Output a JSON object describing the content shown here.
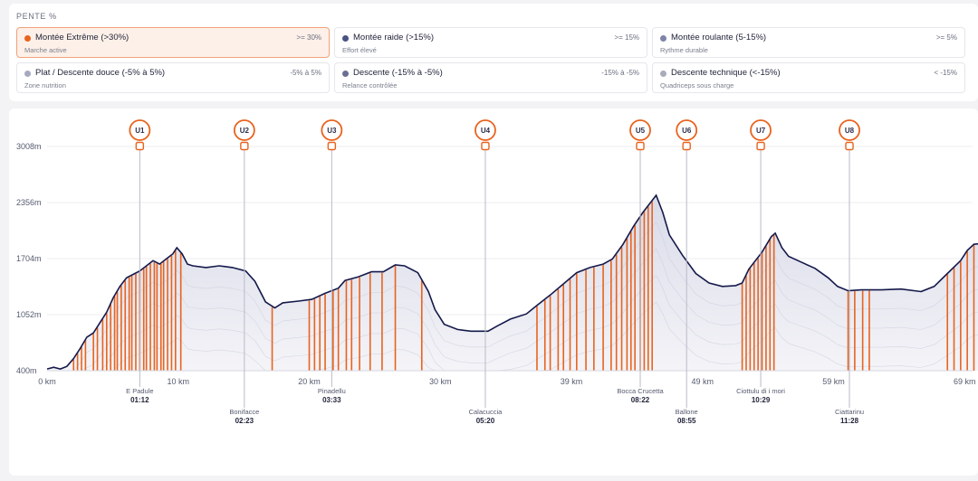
{
  "section_title": "PENTE %",
  "legend": [
    {
      "name": "Montée Extrême (>30%)",
      "range": ">= 30%",
      "desc": "Marche active",
      "color": "#e8631e",
      "active": true
    },
    {
      "name": "Montée raide (>15%)",
      "range": ">= 15%",
      "desc": "Effort élevé",
      "color": "#4a5183",
      "active": false
    },
    {
      "name": "Montée roulante (5-15%)",
      "range": ">= 5%",
      "desc": "Rythme durable",
      "color": "#7e83a8",
      "active": false
    },
    {
      "name": "Plat / Descente douce (-5% à 5%)",
      "range": "-5% à 5%",
      "desc": "Zone nutrition",
      "color": "#a6a9c2",
      "active": false
    },
    {
      "name": "Descente (-15% à -5%)",
      "range": "-15% à -5%",
      "desc": "Relance contrôlée",
      "color": "#6a6e91",
      "active": false
    },
    {
      "name": "Descente technique (<-15%)",
      "range": "< -15%",
      "desc": "Quadriceps sous charge",
      "color": "#a9abbb",
      "active": false
    }
  ],
  "colors": {
    "profile_line": "#15194a",
    "steep": "#e8631e",
    "marker": "#e8631e",
    "fill": "#e4e5ef"
  },
  "chart_data": {
    "type": "area",
    "xlabel": "",
    "ylabel": "",
    "x_ticks": [
      {
        "label": "0 km",
        "km": 0
      },
      {
        "label": "10 km",
        "km": 9.9
      },
      {
        "label": "20 km",
        "km": 19.8
      },
      {
        "label": "30 km",
        "km": 29.7
      },
      {
        "label": "39 km",
        "km": 39.6
      },
      {
        "label": "49 km",
        "km": 49.5
      },
      {
        "label": "59 km",
        "km": 59.4
      },
      {
        "label": "69 km",
        "km": 69.3
      }
    ],
    "xlim": [
      0,
      69.9
    ],
    "y_ticks": [
      {
        "label": "400m",
        "value": 400
      },
      {
        "label": "1052m",
        "value": 1052
      },
      {
        "label": "1704m",
        "value": 1704
      },
      {
        "label": "2356m",
        "value": 2356
      },
      {
        "label": "3008m",
        "value": 3008
      }
    ],
    "ylim": [
      400,
      3008
    ],
    "profile": [
      [
        0,
        420
      ],
      [
        0.5,
        440
      ],
      [
        1.0,
        420
      ],
      [
        1.5,
        450
      ],
      [
        2.0,
        540
      ],
      [
        2.5,
        660
      ],
      [
        3.0,
        790
      ],
      [
        3.5,
        840
      ],
      [
        4.0,
        960
      ],
      [
        4.5,
        1080
      ],
      [
        5.0,
        1250
      ],
      [
        5.5,
        1380
      ],
      [
        6.0,
        1480
      ],
      [
        6.5,
        1520
      ],
      [
        7.0,
        1560
      ],
      [
        7.5,
        1620
      ],
      [
        8.0,
        1680
      ],
      [
        8.5,
        1640
      ],
      [
        9.0,
        1700
      ],
      [
        9.5,
        1760
      ],
      [
        9.8,
        1830
      ],
      [
        10.2,
        1760
      ],
      [
        10.6,
        1640
      ],
      [
        11.0,
        1620
      ],
      [
        12.0,
        1600
      ],
      [
        13.0,
        1620
      ],
      [
        13.5,
        1610
      ],
      [
        14.0,
        1600
      ],
      [
        15.0,
        1560
      ],
      [
        15.7,
        1440
      ],
      [
        16.5,
        1200
      ],
      [
        17.2,
        1130
      ],
      [
        17.8,
        1190
      ],
      [
        19.0,
        1210
      ],
      [
        20.0,
        1230
      ],
      [
        21.0,
        1300
      ],
      [
        22.0,
        1360
      ],
      [
        22.5,
        1450
      ],
      [
        23.5,
        1490
      ],
      [
        24.5,
        1550
      ],
      [
        25.4,
        1550
      ],
      [
        26.3,
        1630
      ],
      [
        27.0,
        1620
      ],
      [
        28.0,
        1540
      ],
      [
        28.8,
        1320
      ],
      [
        29.3,
        1110
      ],
      [
        30.0,
        940
      ],
      [
        31.0,
        880
      ],
      [
        32.0,
        860
      ],
      [
        33.3,
        860
      ],
      [
        34.0,
        920
      ],
      [
        35.0,
        1000
      ],
      [
        36.2,
        1060
      ],
      [
        37.0,
        1160
      ],
      [
        38.0,
        1280
      ],
      [
        39.0,
        1410
      ],
      [
        40.0,
        1540
      ],
      [
        41.0,
        1600
      ],
      [
        42.0,
        1640
      ],
      [
        42.7,
        1700
      ],
      [
        43.5,
        1870
      ],
      [
        44.3,
        2080
      ],
      [
        45.0,
        2240
      ],
      [
        45.6,
        2360
      ],
      [
        46.0,
        2440
      ],
      [
        46.5,
        2240
      ],
      [
        47.0,
        1980
      ],
      [
        48.0,
        1740
      ],
      [
        49.0,
        1530
      ],
      [
        50.0,
        1420
      ],
      [
        51.0,
        1380
      ],
      [
        52.0,
        1390
      ],
      [
        52.5,
        1420
      ],
      [
        53.0,
        1580
      ],
      [
        54.0,
        1780
      ],
      [
        54.7,
        1960
      ],
      [
        55.0,
        2000
      ],
      [
        55.5,
        1830
      ],
      [
        56.0,
        1730
      ],
      [
        57.0,
        1660
      ],
      [
        58.0,
        1590
      ],
      [
        59.0,
        1480
      ],
      [
        59.7,
        1380
      ],
      [
        60.5,
        1330
      ],
      [
        61.5,
        1340
      ],
      [
        63.0,
        1340
      ],
      [
        64.5,
        1350
      ],
      [
        66.0,
        1320
      ],
      [
        67.0,
        1380
      ],
      [
        68.0,
        1530
      ],
      [
        69.0,
        1680
      ],
      [
        69.5,
        1800
      ],
      [
        70.0,
        1870
      ],
      [
        70.6,
        1880
      ],
      [
        71.4,
        1820
      ]
    ],
    "steep_segments_km": [
      2.0,
      2.3,
      2.6,
      2.9,
      3.5,
      3.8,
      4.2,
      4.5,
      4.8,
      5.1,
      5.3,
      5.6,
      5.9,
      6.2,
      6.4,
      6.7,
      7.0,
      7.3,
      7.5,
      7.8,
      8.1,
      8.3,
      8.6,
      8.8,
      9.1,
      9.4,
      9.7,
      10.1,
      17.0,
      19.8,
      20.2,
      20.6,
      21.0,
      21.6,
      22.0,
      22.6,
      23.0,
      23.6,
      24.4,
      25.3,
      26.3,
      28.3,
      37.0,
      37.6,
      38.0,
      38.6,
      39.0,
      39.5,
      40.0,
      40.7,
      41.3,
      42.0,
      42.6,
      43.0,
      43.4,
      43.8,
      44.1,
      44.4,
      44.8,
      45.1,
      45.4,
      45.7,
      52.5,
      52.8,
      53.1,
      53.4,
      53.7,
      54.0,
      54.3,
      54.6,
      54.9,
      60.5,
      61.0,
      61.6,
      62.1,
      68.0,
      68.5,
      69.0,
      69.5,
      70.0,
      70.5
    ],
    "checkpoints": [
      {
        "id": "U1",
        "km": 7.0,
        "name": "E Padule",
        "time": "01:12",
        "row": 1
      },
      {
        "id": "U2",
        "km": 14.9,
        "name": "Bonifacce",
        "time": "02:23",
        "row": 2
      },
      {
        "id": "U3",
        "km": 21.5,
        "name": "Pinadellu",
        "time": "03:33",
        "row": 1
      },
      {
        "id": "U4",
        "km": 33.1,
        "name": "Calacuccia",
        "time": "05:20",
        "row": 2
      },
      {
        "id": "U5",
        "km": 44.8,
        "name": "Bocca Crucetta",
        "time": "08:22",
        "row": 1
      },
      {
        "id": "U6",
        "km": 48.3,
        "name": "Ballone",
        "time": "08:55",
        "row": 2
      },
      {
        "id": "U7",
        "km": 53.9,
        "name": "Ciottulu di i mori",
        "time": "10:29",
        "row": 1
      },
      {
        "id": "U8",
        "km": 60.6,
        "name": "Ciattarinu",
        "time": "11:28",
        "row": 2
      }
    ]
  }
}
